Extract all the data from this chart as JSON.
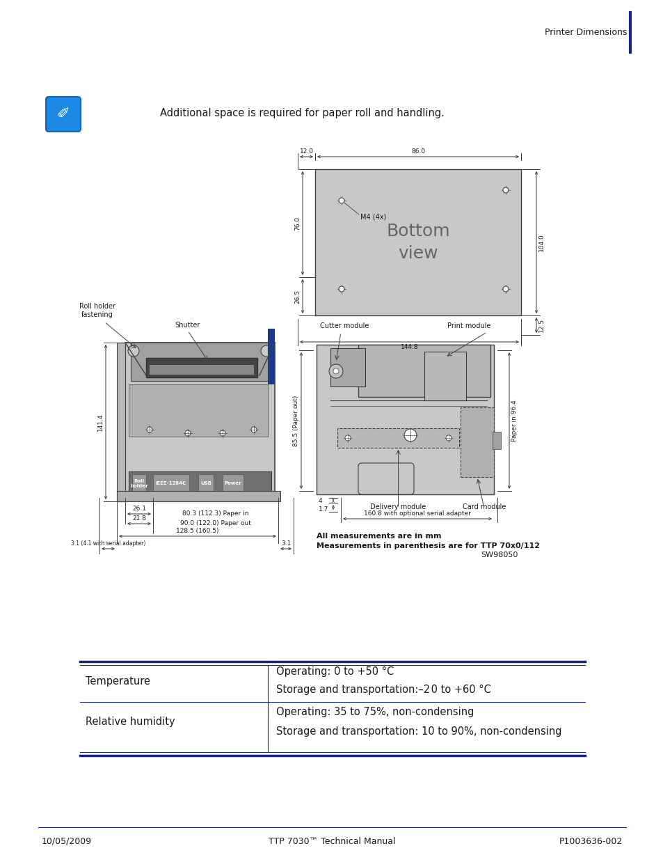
{
  "page_bg": "#ffffff",
  "header_text": "Printer Dimensions",
  "header_bar_color": "#1a237e",
  "note_text": "Additional space is required for paper roll and handling.",
  "bottom_view_label": "Bottom\nview",
  "bottom_view_bg": "#c8c8c8",
  "dim_12": "12.0",
  "dim_86": "86.0",
  "dim_76": "76.0",
  "dim_104": "104.0",
  "dim_265": "26.5",
  "dim_1448": "144.8",
  "dim_125": "12.5",
  "m4_label": "M4 (4x)",
  "roll_holder_label": "Roll holder\nfastening",
  "shutter_label": "Shutter",
  "cutter_label": "Cutter module",
  "print_module_label": "Print module",
  "delivery_label": "Delivery module",
  "card_label": "Card module",
  "paper_out_label": "85.5 (Paper out)",
  "paper_in_label": "Paper in 96.4",
  "dim_1414": "141.4",
  "dim_261": "26.1",
  "dim_218": "21.8",
  "dim_paper_in": "80.3 (112.3) Paper in",
  "dim_paper_out": "90.0 (122.0) Paper out",
  "dim_1285": "128.5 (160.5)",
  "dim_31a": "3.1 (4.1 with serial adapter)",
  "dim_31b": "3.1",
  "dim_4": "4",
  "dim_17": "1.7",
  "dim_1608": "160.8 with optional serial adapter",
  "note_measurements": "All measurements are in mm\nMeasurements in parenthesis are for TTP 70x0/112",
  "sw_label": "SW98050",
  "table_row1_col1": "Temperature",
  "table_row1_col2a": "Operating: 0 to +50 °C",
  "table_row1_col2b": "Storage and transportation:–2 0 to +60 °C",
  "table_row2_col1": "Relative humidity",
  "table_row2_col2a": "Operating: 35 to 75%, non-condensing",
  "table_row2_col2b": "Storage and transportation: 10 to 90%, non-condensing",
  "footer_left": "10/05/2009",
  "footer_center": "TTP 7030™ Technical Manual",
  "footer_right": "P1003636-002",
  "table_line_color": "#1a237e",
  "text_color": "#1a1a1a",
  "draw_color": "#404040",
  "light_gray": "#c8c8c8",
  "mid_gray": "#a0a0a0",
  "dark_gray": "#707070"
}
